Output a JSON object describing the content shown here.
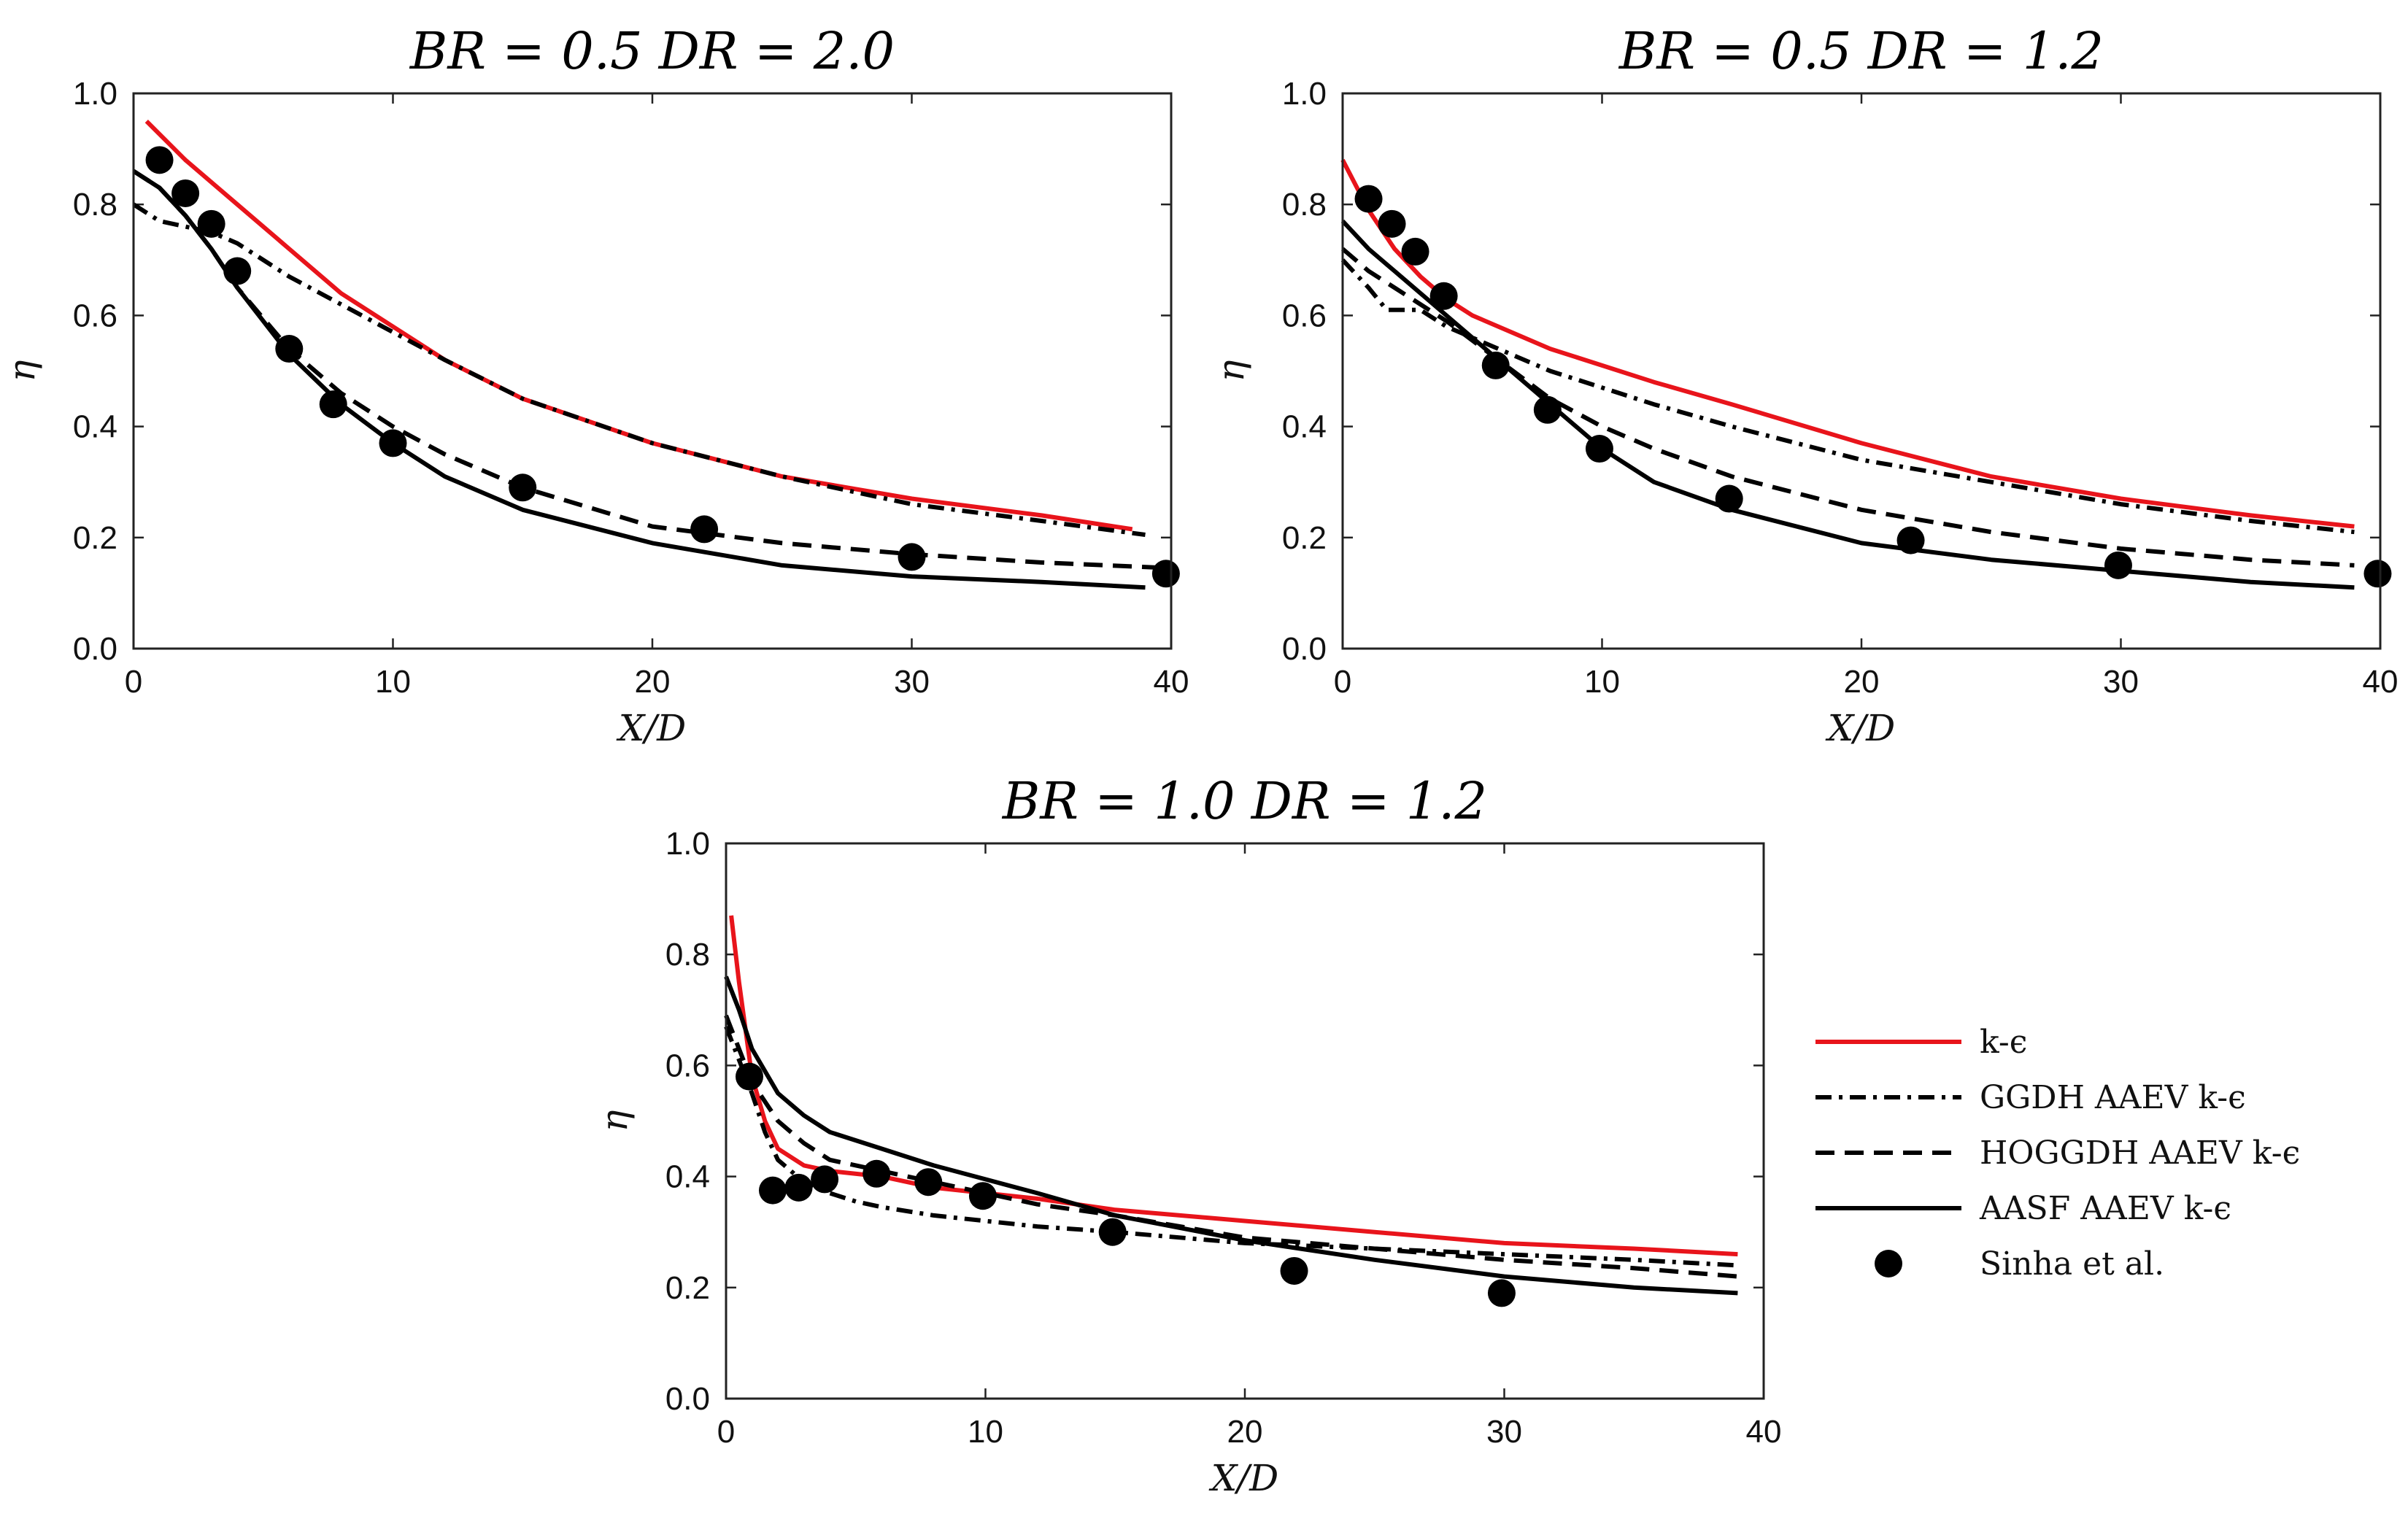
{
  "figure": {
    "legend_position": "right of bottom panel"
  },
  "legend": {
    "entries": [
      {
        "key": "keps",
        "label": "k-ϵ",
        "color": "#e8141b",
        "dash": "solid"
      },
      {
        "key": "ggdh",
        "label": "GGDH AAEV k-ϵ",
        "color": "#000000",
        "dash": "dashdot"
      },
      {
        "key": "hoggdh",
        "label": "HOGGDH AAEV k-ϵ",
        "color": "#000000",
        "dash": "dashed"
      },
      {
        "key": "aasf",
        "label": "AASF AAEV k-ϵ",
        "color": "#000000",
        "dash": "solid"
      },
      {
        "key": "exp",
        "label": "Sinha et al.",
        "color": "#000000",
        "marker": "circle"
      }
    ]
  },
  "chart_data": [
    {
      "type": "line",
      "title": "BR = 0.5 DR = 2.0",
      "xlabel": "X/D",
      "ylabel": "η",
      "xlim": [
        0,
        40
      ],
      "ylim": [
        0,
        1.0
      ],
      "xticks": [
        "0",
        "10",
        "20",
        "30",
        "40"
      ],
      "yticks": [
        "0.0",
        "0.2",
        "0.4",
        "0.6",
        "0.8",
        "1.0"
      ],
      "series": [
        {
          "key": "keps",
          "name": "k-ϵ",
          "x": [
            0.5,
            2,
            4,
            6,
            8,
            10,
            12,
            15,
            20,
            25,
            30,
            35,
            38.5
          ],
          "y": [
            0.95,
            0.88,
            0.8,
            0.72,
            0.64,
            0.58,
            0.52,
            0.45,
            0.37,
            0.31,
            0.27,
            0.24,
            0.215
          ]
        },
        {
          "key": "ggdh",
          "name": "GGDH AAEV k-ϵ",
          "x": [
            0,
            1,
            2,
            3,
            4,
            6,
            8,
            10,
            12,
            15,
            20,
            25,
            30,
            35,
            39
          ],
          "y": [
            0.8,
            0.77,
            0.76,
            0.75,
            0.73,
            0.67,
            0.62,
            0.57,
            0.52,
            0.45,
            0.37,
            0.31,
            0.26,
            0.23,
            0.205
          ]
        },
        {
          "key": "hoggdh",
          "name": "HOGGDH AAEV k-ϵ",
          "x": [
            0,
            1,
            2,
            3,
            4,
            6,
            8,
            10,
            12,
            15,
            20,
            25,
            30,
            35,
            40
          ],
          "y": [
            0.86,
            0.83,
            0.78,
            0.72,
            0.65,
            0.54,
            0.46,
            0.4,
            0.35,
            0.29,
            0.22,
            0.19,
            0.17,
            0.155,
            0.145
          ]
        },
        {
          "key": "aasf",
          "name": "AASF AAEV k-ϵ",
          "x": [
            0,
            1,
            2,
            3,
            4,
            6,
            8,
            10,
            12,
            15,
            20,
            25,
            30,
            35,
            39
          ],
          "y": [
            0.86,
            0.83,
            0.78,
            0.72,
            0.65,
            0.53,
            0.44,
            0.37,
            0.31,
            0.25,
            0.19,
            0.15,
            0.13,
            0.12,
            0.11
          ]
        },
        {
          "key": "exp",
          "name": "Sinha et al.",
          "x": [
            1,
            2,
            3,
            4,
            6,
            7.7,
            10,
            15,
            22,
            30,
            39.8
          ],
          "y": [
            0.88,
            0.82,
            0.765,
            0.68,
            0.54,
            0.44,
            0.37,
            0.29,
            0.215,
            0.165,
            0.135
          ]
        }
      ]
    },
    {
      "type": "line",
      "title": "BR = 0.5 DR = 1.2",
      "xlabel": "X/D",
      "ylabel": "η",
      "xlim": [
        0,
        40
      ],
      "ylim": [
        0,
        1.0
      ],
      "xticks": [
        "0",
        "10",
        "20",
        "30",
        "40"
      ],
      "yticks": [
        "0.0",
        "0.2",
        "0.4",
        "0.6",
        "0.8",
        "1.0"
      ],
      "series": [
        {
          "key": "keps",
          "name": "k-ϵ",
          "x": [
            0,
            1,
            2,
            3,
            4,
            5,
            6,
            8,
            10,
            12,
            15,
            20,
            25,
            30,
            35,
            39
          ],
          "y": [
            0.88,
            0.79,
            0.72,
            0.67,
            0.63,
            0.6,
            0.58,
            0.54,
            0.51,
            0.48,
            0.44,
            0.37,
            0.31,
            0.27,
            0.24,
            0.22
          ]
        },
        {
          "key": "ggdh",
          "name": "GGDH AAEV k-ϵ",
          "x": [
            0,
            1,
            1.7,
            2.5,
            3,
            4,
            6,
            8,
            10,
            12,
            15,
            20,
            25,
            30,
            35,
            39
          ],
          "y": [
            0.7,
            0.65,
            0.61,
            0.61,
            0.61,
            0.58,
            0.54,
            0.5,
            0.47,
            0.44,
            0.4,
            0.34,
            0.3,
            0.26,
            0.23,
            0.21
          ]
        },
        {
          "key": "hoggdh",
          "name": "HOGGDH AAEV k-ϵ",
          "x": [
            0,
            1,
            2,
            3,
            4,
            6,
            8,
            10,
            12,
            15,
            20,
            25,
            30,
            35,
            39
          ],
          "y": [
            0.72,
            0.68,
            0.65,
            0.62,
            0.59,
            0.52,
            0.45,
            0.4,
            0.36,
            0.31,
            0.25,
            0.21,
            0.18,
            0.16,
            0.15
          ]
        },
        {
          "key": "aasf",
          "name": "AASF AAEV k-ϵ",
          "x": [
            0,
            1,
            2,
            3,
            4,
            6,
            8,
            10,
            12,
            15,
            20,
            25,
            30,
            35,
            39
          ],
          "y": [
            0.77,
            0.72,
            0.68,
            0.64,
            0.6,
            0.52,
            0.44,
            0.36,
            0.3,
            0.25,
            0.19,
            0.16,
            0.14,
            0.12,
            0.11
          ]
        },
        {
          "key": "exp",
          "name": "Sinha et al.",
          "x": [
            1,
            1.9,
            2.8,
            3.9,
            5.9,
            7.9,
            9.9,
            14.9,
            21.9,
            29.9,
            39.9
          ],
          "y": [
            0.81,
            0.765,
            0.715,
            0.635,
            0.51,
            0.43,
            0.36,
            0.27,
            0.195,
            0.15,
            0.135
          ]
        }
      ]
    },
    {
      "type": "line",
      "title": "BR = 1.0 DR = 1.2",
      "xlabel": "X/D",
      "ylabel": "η",
      "xlim": [
        0,
        40
      ],
      "ylim": [
        0,
        1.0
      ],
      "xticks": [
        "0",
        "10",
        "20",
        "30",
        "40"
      ],
      "yticks": [
        "0.0",
        "0.2",
        "0.4",
        "0.6",
        "0.8",
        "1.0"
      ],
      "series": [
        {
          "key": "keps",
          "name": "k-ϵ",
          "x": [
            0.2,
            0.5,
            1,
            1.5,
            2,
            3,
            4,
            6,
            8,
            10,
            12,
            15,
            20,
            25,
            30,
            35,
            39
          ],
          "y": [
            0.87,
            0.75,
            0.58,
            0.5,
            0.45,
            0.42,
            0.41,
            0.4,
            0.38,
            0.37,
            0.36,
            0.34,
            0.32,
            0.3,
            0.28,
            0.27,
            0.26
          ]
        },
        {
          "key": "ggdh",
          "name": "GGDH AAEV k-ϵ",
          "x": [
            0,
            0.5,
            1,
            1.5,
            2,
            3,
            4,
            5,
            6,
            8,
            10,
            12,
            15,
            20,
            25,
            30,
            35,
            39
          ],
          "y": [
            0.67,
            0.61,
            0.55,
            0.48,
            0.43,
            0.39,
            0.37,
            0.355,
            0.345,
            0.33,
            0.32,
            0.31,
            0.3,
            0.28,
            0.27,
            0.26,
            0.25,
            0.24
          ]
        },
        {
          "key": "hoggdh",
          "name": "HOGGDH AAEV k-ϵ",
          "x": [
            0,
            0.5,
            1,
            2,
            3,
            4,
            6,
            8,
            10,
            12,
            15,
            20,
            25,
            30,
            35,
            39
          ],
          "y": [
            0.69,
            0.63,
            0.57,
            0.5,
            0.46,
            0.43,
            0.41,
            0.39,
            0.37,
            0.35,
            0.33,
            0.29,
            0.27,
            0.25,
            0.235,
            0.22
          ]
        },
        {
          "key": "aasf",
          "name": "AASF AAEV k-ϵ",
          "x": [
            0,
            0.5,
            1,
            2,
            3,
            4,
            6,
            8,
            10,
            12,
            15,
            20,
            25,
            30,
            35,
            39
          ],
          "y": [
            0.76,
            0.7,
            0.63,
            0.55,
            0.51,
            0.48,
            0.45,
            0.42,
            0.395,
            0.37,
            0.33,
            0.285,
            0.25,
            0.22,
            0.2,
            0.19
          ]
        },
        {
          "key": "exp",
          "name": "Sinha et al.",
          "x": [
            0.9,
            1.8,
            2.8,
            3.8,
            5.8,
            7.8,
            9.9,
            14.9,
            21.9,
            29.9
          ],
          "y": [
            0.58,
            0.375,
            0.38,
            0.395,
            0.405,
            0.39,
            0.365,
            0.3,
            0.23,
            0.19
          ]
        }
      ]
    }
  ]
}
